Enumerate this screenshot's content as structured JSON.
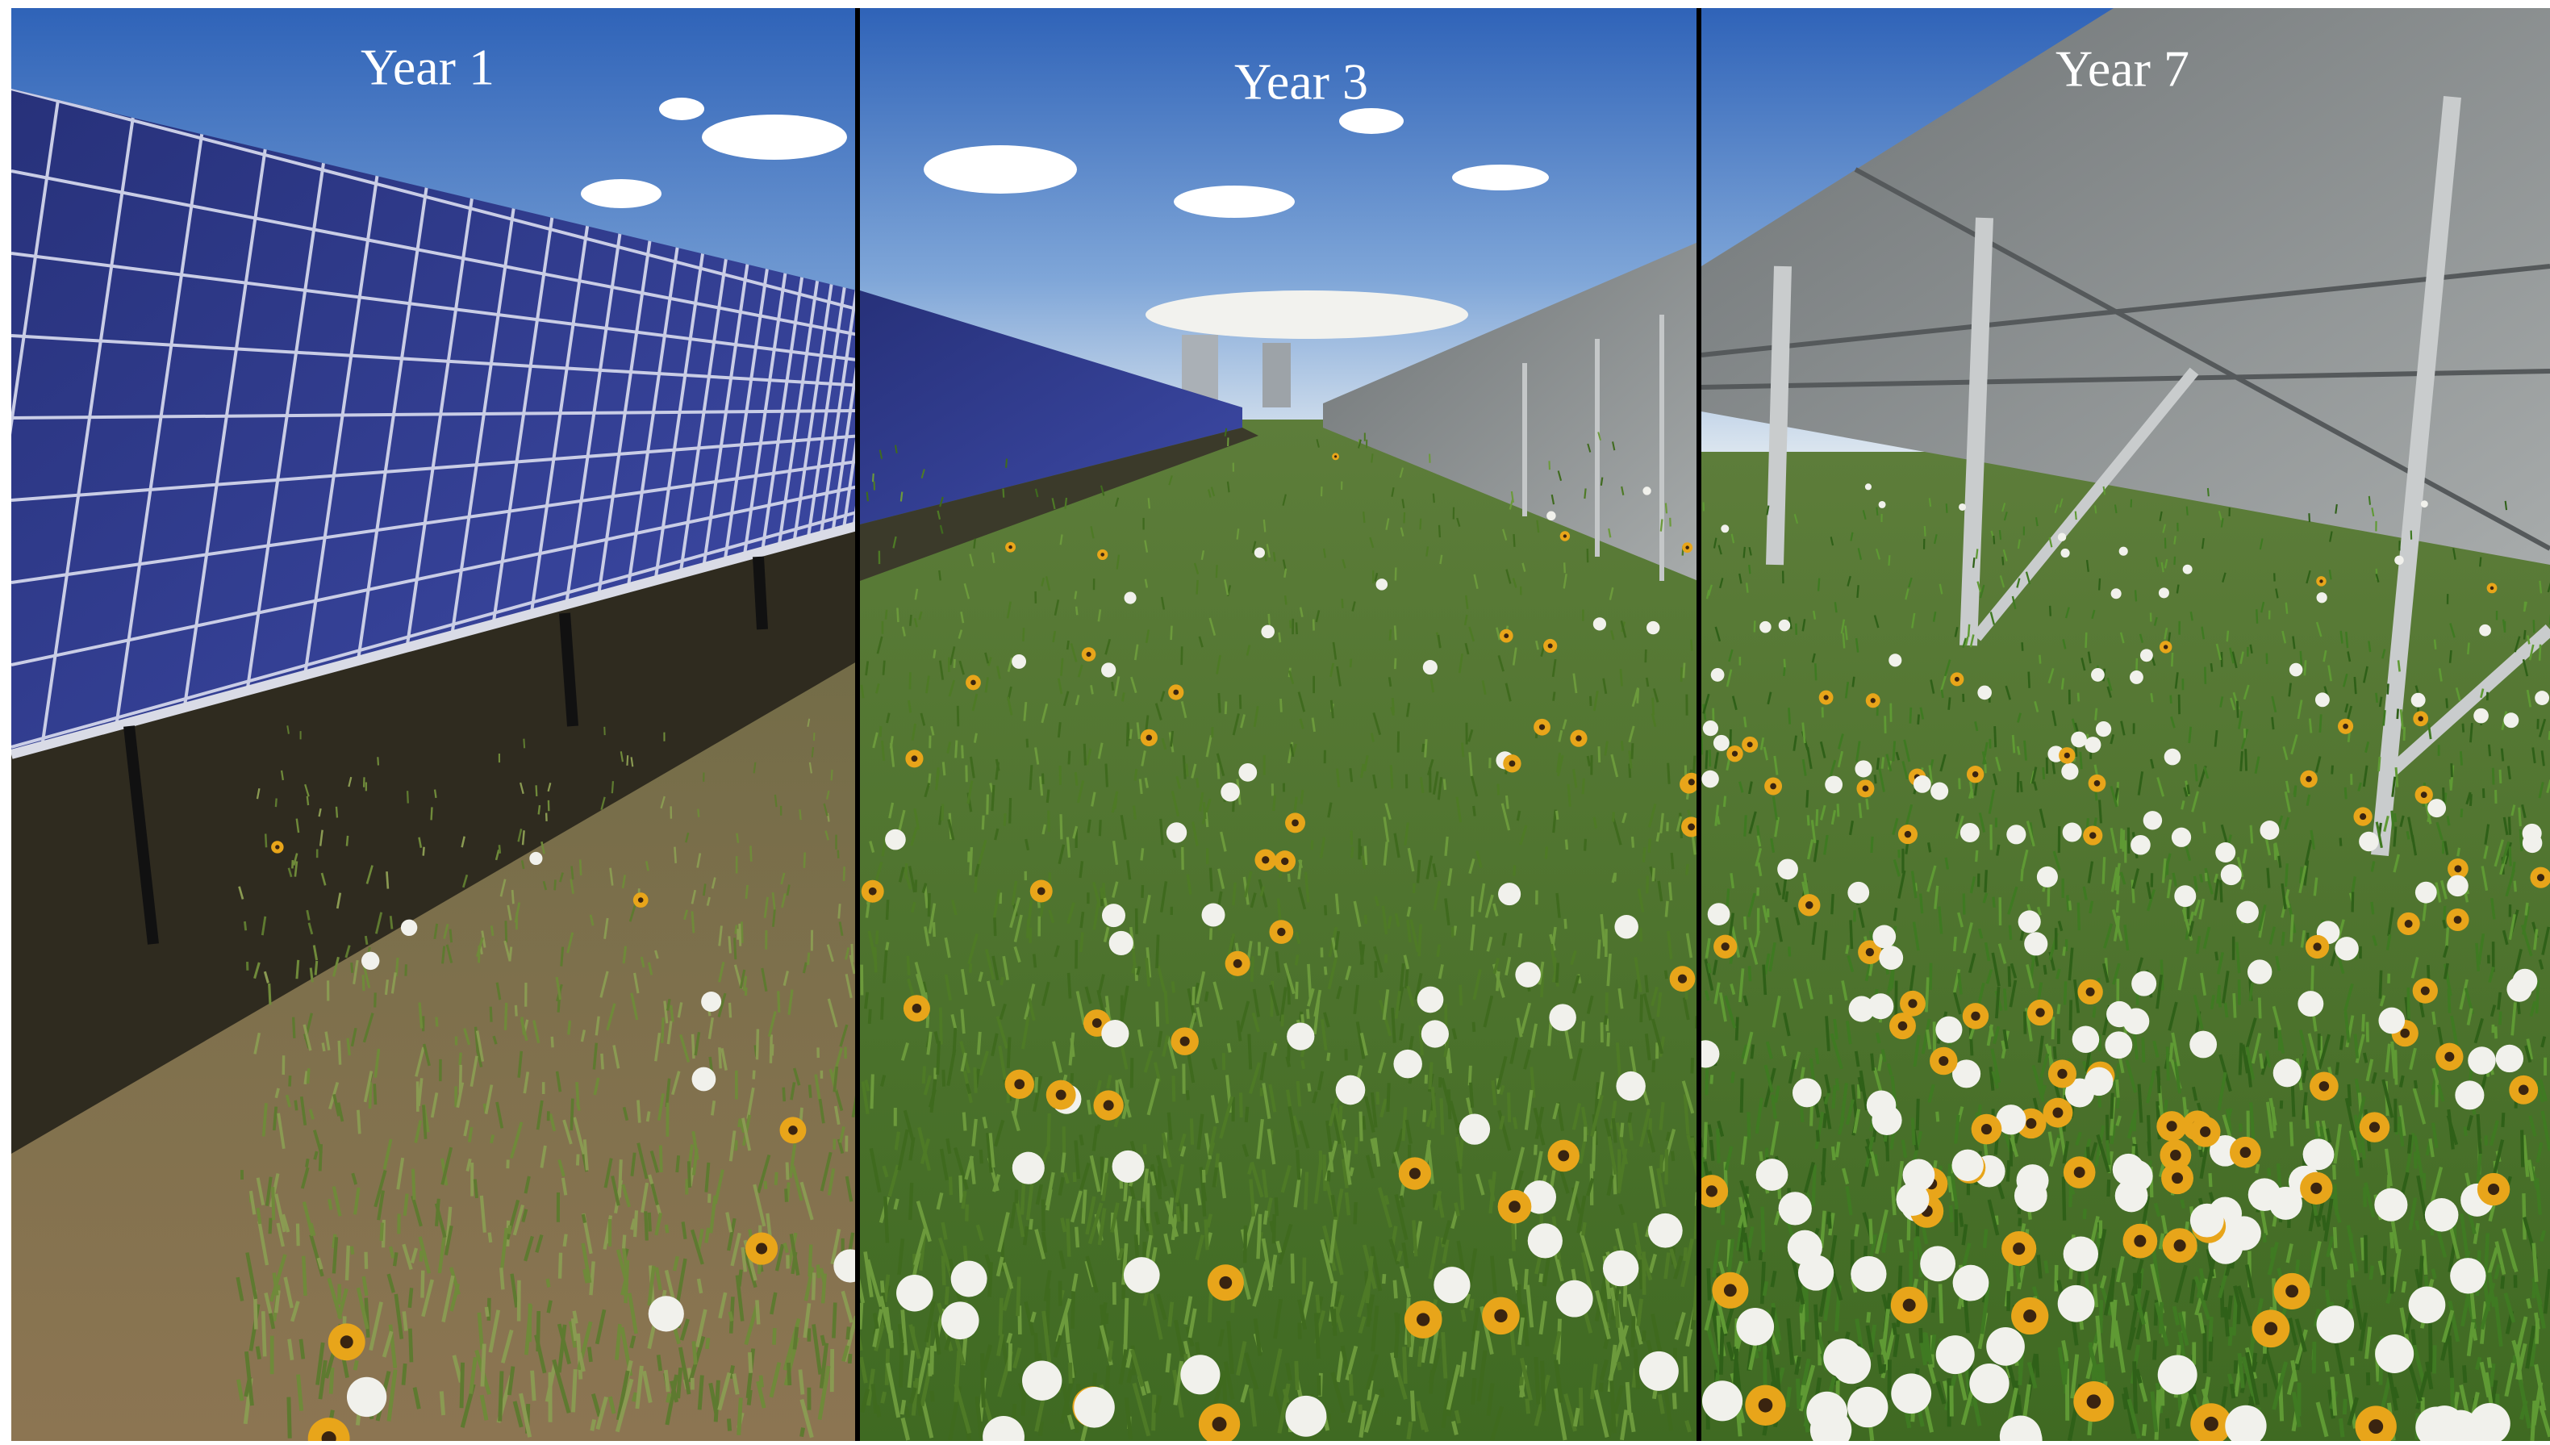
{
  "panels": [
    {
      "label": "Year 1"
    },
    {
      "label": "Year 3"
    },
    {
      "label": "Year 7"
    }
  ]
}
